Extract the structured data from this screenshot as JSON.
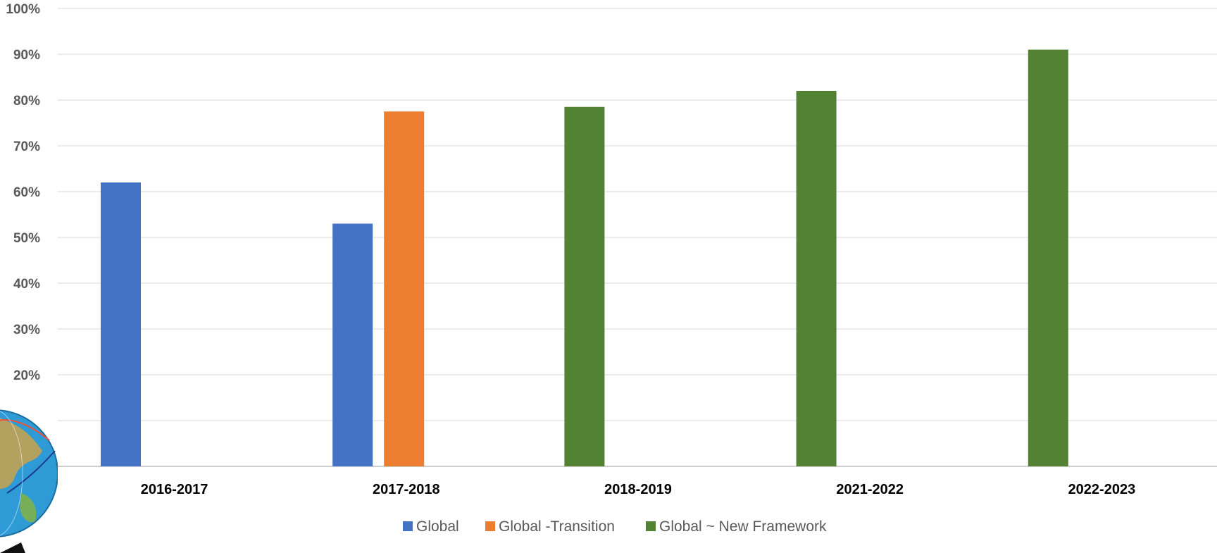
{
  "chart_data": {
    "type": "bar",
    "categories": [
      "2016-2017",
      "2017-2018",
      "2018-2019",
      "2021-2022",
      "2022-2023"
    ],
    "series": [
      {
        "name": "Global",
        "color": "#4472C4",
        "values": [
          62,
          53,
          null,
          null,
          null
        ]
      },
      {
        "name": "Global -Transition",
        "color": "#ED7D31",
        "values": [
          null,
          77.5,
          null,
          null,
          null
        ]
      },
      {
        "name": "Global ~ New Framework",
        "color": "#548235",
        "values": [
          null,
          null,
          78.5,
          82,
          91
        ]
      }
    ],
    "y_ticks": [
      "",
      "",
      "20%",
      "30%",
      "40%",
      "50%",
      "60%",
      "70%",
      "80%",
      "90%",
      "100%"
    ],
    "ylim": [
      0,
      100
    ],
    "grid": true,
    "legend_position": "bottom",
    "title": "",
    "xlabel": "",
    "ylabel": ""
  },
  "decoration": {
    "globe_icon": "globe-icon"
  }
}
